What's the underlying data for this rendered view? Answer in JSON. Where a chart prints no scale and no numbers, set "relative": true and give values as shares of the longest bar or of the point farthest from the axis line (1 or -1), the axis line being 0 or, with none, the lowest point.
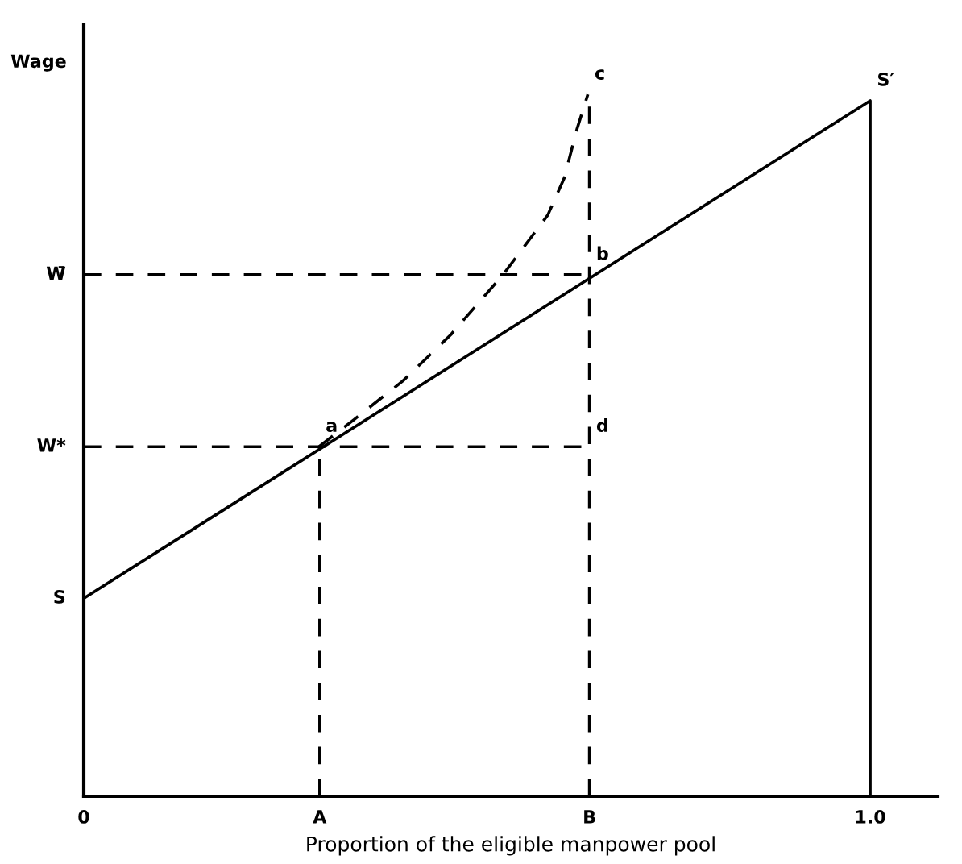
{
  "chart_data": {
    "type": "line",
    "relative": true,
    "xlabel": "Proportion of the eligible manpower pool",
    "ylabel": "Wage",
    "xlim": [
      0,
      1.086
    ],
    "xticks": [
      0,
      {
        "value": 0.3,
        "label": "A"
      },
      {
        "value": 0.643,
        "label": "B"
      },
      {
        "value": 1,
        "label": "1.0"
      }
    ],
    "tick_labels": "x",
    "series": [
      {
        "color": "#000000",
        "line_style": "solid",
        "x": [
          0,
          1,
          1
        ],
        "values": [
          0.282,
          0.991,
          0
        ]
      },
      {
        "color": "#000000",
        "line_style": "dashed",
        "x": [
          0.299,
          0.344,
          0.406,
          0.467,
          0.533,
          0.59,
          0.611,
          0.627,
          0.641
        ],
        "values": [
          0.498,
          0.537,
          0.592,
          0.658,
          0.743,
          0.828,
          0.881,
          0.95,
          1.0
        ]
      },
      {
        "color": "#000000",
        "line_style": "dashed",
        "x": [
          0,
          0.643
        ],
        "values": [
          0.743,
          0.743
        ]
      },
      {
        "color": "#000000",
        "line_style": "dashed",
        "x": [
          0,
          0.643
        ],
        "values": [
          0.498,
          0.498
        ]
      },
      {
        "color": "#000000",
        "line_style": "dashed",
        "x": [
          0.3,
          0.3
        ],
        "values": [
          0,
          0.498
        ]
      },
      {
        "color": "#000000",
        "line_style": "dashed",
        "x": [
          0.643,
          0.643
        ],
        "values": [
          0,
          1.0
        ]
      }
    ],
    "annotations": [
      {
        "text": "S",
        "x": 0,
        "y": 0.282
      },
      {
        "text": "W*",
        "x": 0,
        "y": 0.498
      },
      {
        "text": "W̄",
        "x": 0,
        "y": 0.743
      },
      {
        "text": "a",
        "x": 0.299,
        "y": 0.498
      },
      {
        "text": "b",
        "x": 0.643,
        "y": 0.743
      },
      {
        "text": "c",
        "x": 0.641,
        "y": 1.0
      },
      {
        "text": "d",
        "x": 0.643,
        "y": 0.498
      },
      {
        "text": "S′",
        "x": 1,
        "y": 0.991
      }
    ]
  }
}
